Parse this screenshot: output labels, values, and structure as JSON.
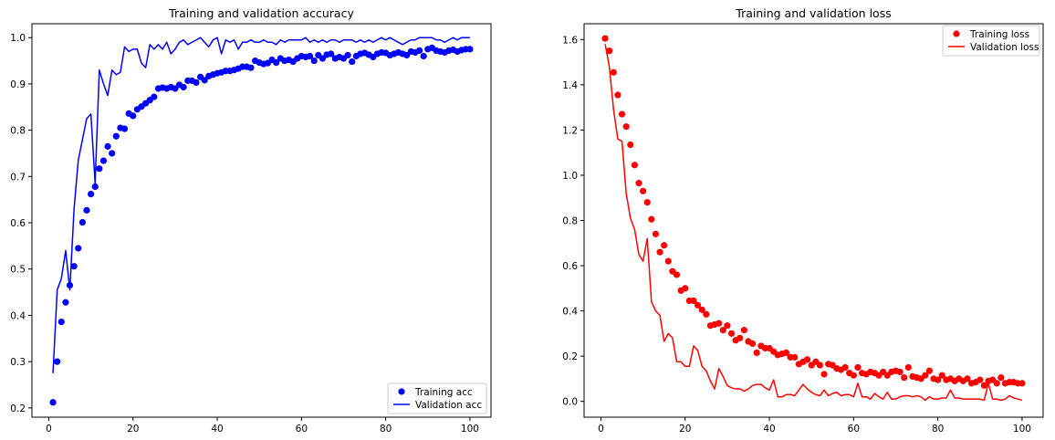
{
  "chart_data": [
    {
      "type": "line",
      "title": "Training and validation accuracy",
      "xlabel": "",
      "ylabel": "",
      "xlim": [
        -4,
        105
      ],
      "ylim": [
        0.18,
        1.03
      ],
      "xticks": [
        0,
        20,
        40,
        60,
        80,
        100
      ],
      "yticks": [
        0.2,
        0.3,
        0.4,
        0.5,
        0.6,
        0.7,
        0.8,
        0.9,
        1.0
      ],
      "xtick_labels": [
        "0",
        "20",
        "40",
        "60",
        "80",
        "100"
      ],
      "ytick_labels": [
        "0.2",
        "0.3",
        "0.4",
        "0.5",
        "0.6",
        "0.7",
        "0.8",
        "0.9",
        "1.0"
      ],
      "legend_position": "lower right",
      "grid": false,
      "x": [
        1,
        2,
        3,
        4,
        5,
        6,
        7,
        8,
        9,
        10,
        11,
        12,
        13,
        14,
        15,
        16,
        17,
        18,
        19,
        20,
        21,
        22,
        23,
        24,
        25,
        26,
        27,
        28,
        29,
        30,
        31,
        32,
        33,
        34,
        35,
        36,
        37,
        38,
        39,
        40,
        41,
        42,
        43,
        44,
        45,
        46,
        47,
        48,
        49,
        50,
        51,
        52,
        53,
        54,
        55,
        56,
        57,
        58,
        59,
        60,
        61,
        62,
        63,
        64,
        65,
        66,
        67,
        68,
        69,
        70,
        71,
        72,
        73,
        74,
        75,
        76,
        77,
        78,
        79,
        80,
        81,
        82,
        83,
        84,
        85,
        86,
        87,
        88,
        89,
        90,
        91,
        92,
        93,
        94,
        95,
        96,
        97,
        98,
        99,
        100
      ],
      "series": [
        {
          "name": "Training acc",
          "style": "points",
          "color": "#0000ff",
          "values": [
            0.212,
            0.3,
            0.386,
            0.428,
            0.465,
            0.506,
            0.545,
            0.601,
            0.627,
            0.662,
            0.678,
            0.717,
            0.734,
            0.765,
            0.75,
            0.787,
            0.805,
            0.803,
            0.836,
            0.831,
            0.845,
            0.851,
            0.858,
            0.865,
            0.872,
            0.89,
            0.892,
            0.89,
            0.893,
            0.89,
            0.898,
            0.893,
            0.907,
            0.907,
            0.903,
            0.915,
            0.908,
            0.917,
            0.92,
            0.923,
            0.925,
            0.928,
            0.928,
            0.93,
            0.933,
            0.937,
            0.937,
            0.935,
            0.95,
            0.946,
            0.943,
            0.945,
            0.952,
            0.946,
            0.955,
            0.95,
            0.952,
            0.948,
            0.955,
            0.96,
            0.958,
            0.96,
            0.95,
            0.962,
            0.955,
            0.963,
            0.965,
            0.955,
            0.958,
            0.955,
            0.962,
            0.948,
            0.96,
            0.965,
            0.967,
            0.963,
            0.958,
            0.965,
            0.968,
            0.967,
            0.962,
            0.965,
            0.968,
            0.965,
            0.962,
            0.97,
            0.968,
            0.972,
            0.96,
            0.975,
            0.978,
            0.972,
            0.97,
            0.968,
            0.972,
            0.974,
            0.97,
            0.973,
            0.975,
            0.975
          ]
        },
        {
          "name": "Validation acc",
          "style": "line",
          "color": "#0000ff",
          "values": [
            0.275,
            0.455,
            0.48,
            0.54,
            0.455,
            0.63,
            0.735,
            0.78,
            0.825,
            0.835,
            0.685,
            0.93,
            0.9,
            0.875,
            0.93,
            0.92,
            0.925,
            0.98,
            0.97,
            0.975,
            0.975,
            0.945,
            0.935,
            0.985,
            0.975,
            0.985,
            0.975,
            0.99,
            0.965,
            0.975,
            0.99,
            0.995,
            0.985,
            0.99,
            0.995,
            1.0,
            0.99,
            0.98,
            0.995,
            1.0,
            0.965,
            0.995,
            0.99,
            0.995,
            0.975,
            0.99,
            0.99,
            0.995,
            0.99,
            0.99,
            0.995,
            0.99,
            0.99,
            0.985,
            0.995,
            0.99,
            0.995,
            0.995,
            0.995,
            0.995,
            1.0,
            0.99,
            0.995,
            0.99,
            0.995,
            0.99,
            0.995,
            0.995,
            0.99,
            0.995,
            0.995,
            0.995,
            0.99,
            0.995,
            0.99,
            0.995,
            0.99,
            0.995,
            1.0,
            0.995,
            1.0,
            0.995,
            0.99,
            0.985,
            0.99,
            0.995,
            0.995,
            1.0,
            1.0,
            1.0,
            1.0,
            0.995,
            0.995,
            0.99,
            0.995,
            1.0,
            0.995,
            1.0,
            1.0,
            1.0
          ]
        }
      ]
    },
    {
      "type": "line",
      "title": "Training and validation loss",
      "xlabel": "",
      "ylabel": "",
      "xlim": [
        -4,
        105
      ],
      "ylim": [
        -0.07,
        1.67
      ],
      "xticks": [
        0,
        20,
        40,
        60,
        80,
        100
      ],
      "yticks": [
        0.0,
        0.2,
        0.4,
        0.6,
        0.8,
        1.0,
        1.2,
        1.4,
        1.6
      ],
      "xtick_labels": [
        "0",
        "20",
        "40",
        "60",
        "80",
        "100"
      ],
      "ytick_labels": [
        "0.0",
        "0.2",
        "0.4",
        "0.6",
        "0.8",
        "1.0",
        "1.2",
        "1.4",
        "1.6"
      ],
      "legend_position": "upper right",
      "grid": false,
      "x": [
        1,
        2,
        3,
        4,
        5,
        6,
        7,
        8,
        9,
        10,
        11,
        12,
        13,
        14,
        15,
        16,
        17,
        18,
        19,
        20,
        21,
        22,
        23,
        24,
        25,
        26,
        27,
        28,
        29,
        30,
        31,
        32,
        33,
        34,
        35,
        36,
        37,
        38,
        39,
        40,
        41,
        42,
        43,
        44,
        45,
        46,
        47,
        48,
        49,
        50,
        51,
        52,
        53,
        54,
        55,
        56,
        57,
        58,
        59,
        60,
        61,
        62,
        63,
        64,
        65,
        66,
        67,
        68,
        69,
        70,
        71,
        72,
        73,
        74,
        75,
        76,
        77,
        78,
        79,
        80,
        81,
        82,
        83,
        84,
        85,
        86,
        87,
        88,
        89,
        90,
        91,
        92,
        93,
        94,
        95,
        96,
        97,
        98,
        99,
        100
      ],
      "series": [
        {
          "name": "Training loss",
          "style": "points",
          "color": "#ff0000",
          "values": [
            1.605,
            1.55,
            1.455,
            1.355,
            1.27,
            1.215,
            1.135,
            1.045,
            0.965,
            0.93,
            0.88,
            0.805,
            0.74,
            0.66,
            0.69,
            0.62,
            0.575,
            0.56,
            0.49,
            0.5,
            0.445,
            0.445,
            0.425,
            0.405,
            0.385,
            0.335,
            0.34,
            0.345,
            0.315,
            0.335,
            0.3,
            0.27,
            0.28,
            0.315,
            0.265,
            0.255,
            0.215,
            0.245,
            0.235,
            0.235,
            0.22,
            0.205,
            0.21,
            0.215,
            0.195,
            0.195,
            0.165,
            0.175,
            0.185,
            0.16,
            0.175,
            0.16,
            0.12,
            0.165,
            0.16,
            0.145,
            0.14,
            0.15,
            0.125,
            0.115,
            0.15,
            0.125,
            0.12,
            0.13,
            0.125,
            0.115,
            0.13,
            0.115,
            0.13,
            0.135,
            0.13,
            0.105,
            0.15,
            0.11,
            0.105,
            0.1,
            0.115,
            0.135,
            0.1,
            0.095,
            0.115,
            0.095,
            0.1,
            0.09,
            0.1,
            0.09,
            0.1,
            0.08,
            0.085,
            0.095,
            0.07,
            0.09,
            0.095,
            0.08,
            0.105,
            0.08,
            0.085,
            0.085,
            0.08,
            0.08
          ]
        },
        {
          "name": "Validation loss",
          "style": "line",
          "color": "#ff0000",
          "values": [
            1.58,
            1.48,
            1.29,
            1.16,
            1.15,
            0.92,
            0.81,
            0.76,
            0.65,
            0.62,
            0.72,
            0.44,
            0.4,
            0.38,
            0.265,
            0.3,
            0.28,
            0.175,
            0.175,
            0.155,
            0.155,
            0.245,
            0.225,
            0.155,
            0.135,
            0.09,
            0.055,
            0.145,
            0.11,
            0.07,
            0.06,
            0.055,
            0.055,
            0.045,
            0.055,
            0.07,
            0.075,
            0.075,
            0.06,
            0.05,
            0.095,
            0.02,
            0.02,
            0.03,
            0.03,
            0.025,
            0.05,
            0.075,
            0.055,
            0.04,
            0.03,
            0.025,
            0.05,
            0.025,
            0.035,
            0.04,
            0.025,
            0.03,
            0.03,
            0.02,
            0.08,
            0.02,
            0.02,
            0.01,
            0.035,
            0.02,
            0.01,
            0.04,
            0.01,
            0.01,
            0.02,
            0.025,
            0.025,
            0.02,
            0.025,
            0.02,
            0.005,
            0.02,
            0.01,
            0.01,
            0.015,
            0.015,
            0.05,
            0.015,
            0.015,
            0.01,
            0.01,
            0.01,
            0.01,
            0.01,
            0.005,
            0.08,
            0.01,
            0.01,
            0.005,
            0.01,
            0.025,
            0.015,
            0.01,
            0.005
          ]
        }
      ]
    }
  ]
}
